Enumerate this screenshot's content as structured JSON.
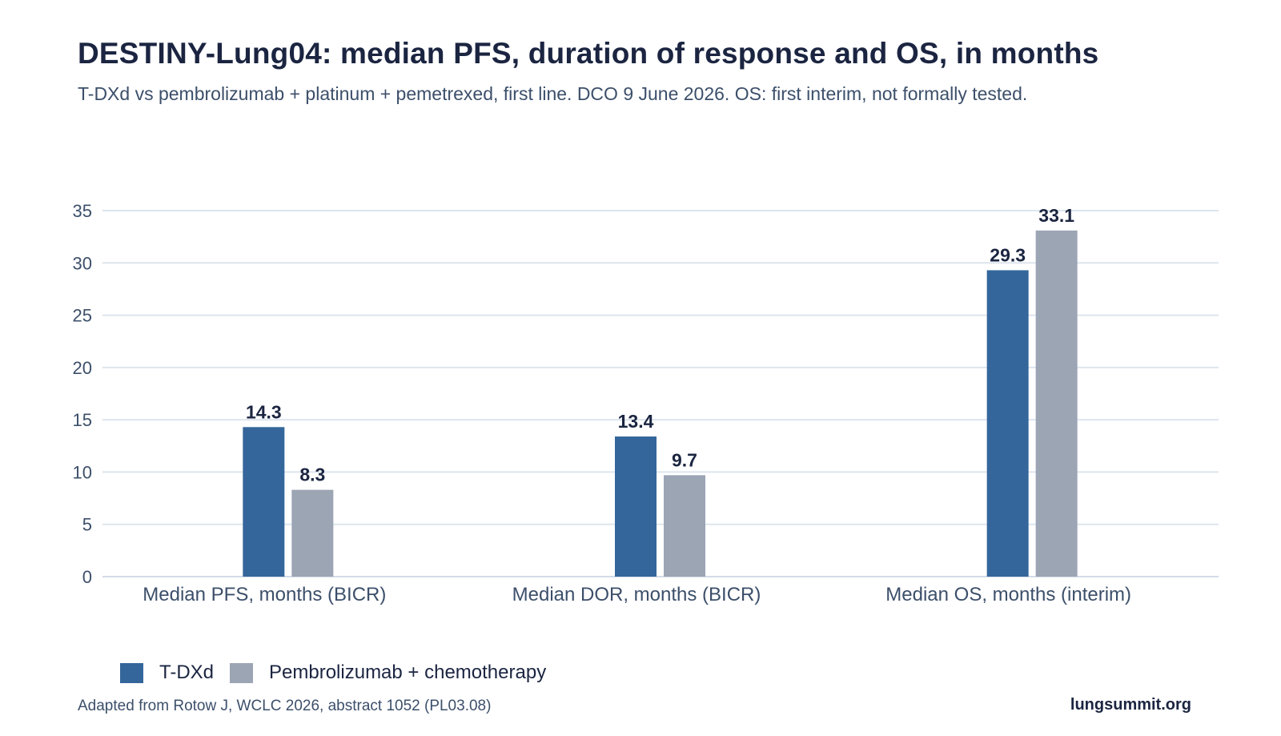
{
  "header": {
    "title": "DESTINY-Lung04: median PFS, duration of response and OS, in months",
    "subtitle": "T-DXd vs pembrolizumab + platinum + pemetrexed, first line. DCO 9 June 2026. OS: first interim, not formally tested."
  },
  "chart_data": {
    "type": "bar",
    "title": "DESTINY-Lung04: median PFS, duration of response and OS, in months",
    "subtitle": "T-DXd vs pembrolizumab + platinum + pemetrexed, first line. DCO 9 June 2026. OS: first interim, not formally tested.",
    "categories": [
      "Median PFS, months (BICR)",
      "Median DOR, months (BICR)",
      "Median OS, months (interim)"
    ],
    "series": [
      {
        "name": "T-DXd",
        "values": [
          14.3,
          13.4,
          29.3
        ],
        "color": "#34669b"
      },
      {
        "name": "Pembrolizumab + chemotherapy",
        "values": [
          8.3,
          9.7,
          33.1
        ],
        "color": "#9ca5b4"
      }
    ],
    "ylim": [
      0,
      35
    ],
    "yticks": [
      0,
      5,
      10,
      15,
      20,
      25,
      30,
      35
    ],
    "grid": true,
    "legend_position": "bottom-left",
    "data_labels": true
  },
  "legend": {
    "items": [
      {
        "label": "T-DXd",
        "color": "#34669b"
      },
      {
        "label": "Pembrolizumab + chemotherapy",
        "color": "#9ca5b4"
      }
    ]
  },
  "footer": {
    "source": "Adapted from Rotow J, WCLC 2026, abstract 1052 (PL03.08)",
    "brand": "lungsummit.org"
  },
  "colors": {
    "title": "#1b2541",
    "text": "#3c4f6a",
    "grid": "#dde5ee"
  }
}
